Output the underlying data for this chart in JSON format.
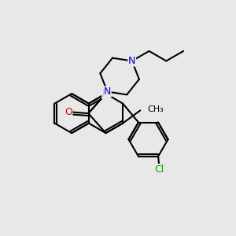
{
  "bg_color": "#e8e8e8",
  "bond_color": "#000000",
  "bond_width": 1.5,
  "N_color": "#0000cc",
  "O_color": "#cc0000",
  "Cl_color": "#00aa00",
  "font_size": 9,
  "fig_size": [
    3.0,
    3.0
  ],
  "dpi": 100,
  "xlim": [
    0,
    10
  ],
  "ylim": [
    0,
    10
  ]
}
